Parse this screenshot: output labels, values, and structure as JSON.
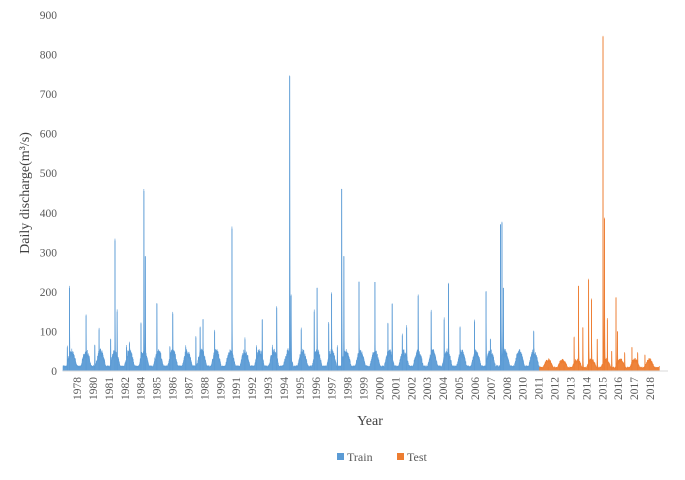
{
  "chart_data": {
    "type": "area",
    "title": "",
    "xlabel": "Year",
    "ylabel": "Daily discharge(m³/s)",
    "ylim": [
      0,
      900
    ],
    "yticks": [
      0,
      100,
      200,
      300,
      400,
      500,
      600,
      700,
      800,
      900
    ],
    "xticks": [
      "1978",
      "1980",
      "1981",
      "1982",
      "1984",
      "1985",
      "1986",
      "1987",
      "1988",
      "1990",
      "1991",
      "1992",
      "1993",
      "1994",
      "1995",
      "1996",
      "1997",
      "1998",
      "1999",
      "2000",
      "2001",
      "2002",
      "2003",
      "2004",
      "2005",
      "2006",
      "2007",
      "2008",
      "2010",
      "2011",
      "2012",
      "2013",
      "2014",
      "2015",
      "2016",
      "2017",
      "2018"
    ],
    "grid": false,
    "legend_position": "bottom-center",
    "series": [
      {
        "name": "Train",
        "color": "#5b9bd5",
        "x_range": [
          1978.0,
          2011.0
        ],
        "baseline": 8,
        "annual_floods": [
          [
            1978.3,
            60
          ],
          [
            1978.45,
            210
          ],
          [
            1979.6,
            140
          ],
          [
            1980.2,
            65
          ],
          [
            1980.5,
            105
          ],
          [
            1981.3,
            80
          ],
          [
            1981.6,
            330
          ],
          [
            1981.75,
            150
          ],
          [
            1982.4,
            60
          ],
          [
            1982.6,
            70
          ],
          [
            1983.4,
            120
          ],
          [
            1983.6,
            455
          ],
          [
            1983.7,
            290
          ],
          [
            1984.5,
            170
          ],
          [
            1985.4,
            60
          ],
          [
            1985.6,
            145
          ],
          [
            1986.5,
            60
          ],
          [
            1987.2,
            85
          ],
          [
            1987.5,
            110
          ],
          [
            1987.7,
            130
          ],
          [
            1988.5,
            100
          ],
          [
            1989.7,
            360
          ],
          [
            1990.6,
            80
          ],
          [
            1991.4,
            60
          ],
          [
            1991.8,
            130
          ],
          [
            1992.5,
            60
          ],
          [
            1992.8,
            160
          ],
          [
            1993.7,
            745
          ],
          [
            1993.8,
            190
          ],
          [
            1994.5,
            105
          ],
          [
            1995.4,
            150
          ],
          [
            1995.6,
            210
          ],
          [
            1996.4,
            120
          ],
          [
            1996.6,
            195
          ],
          [
            1997.0,
            60
          ],
          [
            1997.3,
            460
          ],
          [
            1997.45,
            290
          ],
          [
            1998.5,
            225
          ],
          [
            1999.6,
            225
          ],
          [
            2000.5,
            120
          ],
          [
            2000.8,
            170
          ],
          [
            2001.5,
            90
          ],
          [
            2001.8,
            110
          ],
          [
            2002.6,
            190
          ],
          [
            2003.5,
            150
          ],
          [
            2004.4,
            130
          ],
          [
            2004.7,
            220
          ],
          [
            2005.5,
            110
          ],
          [
            2006.5,
            125
          ],
          [
            2007.3,
            200
          ],
          [
            2007.6,
            80
          ],
          [
            2008.3,
            370
          ],
          [
            2008.4,
            375
          ],
          [
            2008.5,
            210
          ],
          [
            2009.6,
            40
          ],
          [
            2010.6,
            100
          ]
        ]
      },
      {
        "name": "Test",
        "color": "#ed7d31",
        "x_range": [
          2011.0,
          2019.3
        ],
        "baseline": 6,
        "annual_floods": [
          [
            2011.6,
            10
          ],
          [
            2012.4,
            12
          ],
          [
            2012.7,
            15
          ],
          [
            2013.4,
            85
          ],
          [
            2013.7,
            215
          ],
          [
            2014.0,
            110
          ],
          [
            2014.4,
            230
          ],
          [
            2014.6,
            180
          ],
          [
            2015.0,
            80
          ],
          [
            2015.4,
            845
          ],
          [
            2015.5,
            385
          ],
          [
            2015.7,
            130
          ],
          [
            2016.0,
            50
          ],
          [
            2016.3,
            185
          ],
          [
            2016.4,
            100
          ],
          [
            2016.9,
            45
          ],
          [
            2017.4,
            60
          ],
          [
            2017.8,
            45
          ],
          [
            2018.3,
            40
          ],
          [
            2018.6,
            30
          ]
        ]
      }
    ]
  }
}
